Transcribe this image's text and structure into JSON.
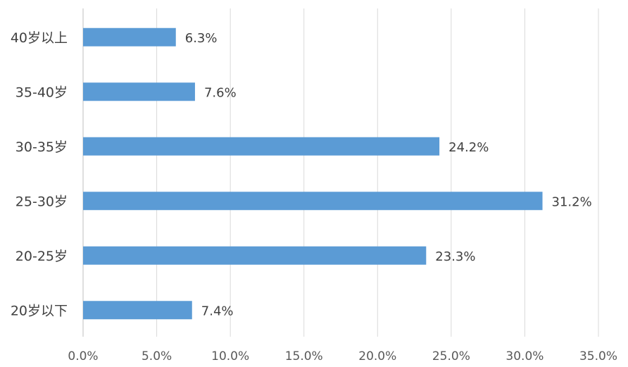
{
  "chart_data": {
    "type": "bar",
    "orientation": "horizontal",
    "categories": [
      "20岁以下",
      "20-25岁",
      "25-30岁",
      "30-35岁",
      "35-40岁",
      "40岁以上"
    ],
    "values": [
      7.4,
      23.3,
      31.2,
      24.2,
      7.6,
      6.3
    ],
    "data_labels": [
      "7.4%",
      "23.3%",
      "31.2%",
      "24.2%",
      "7.6%",
      "6.3%"
    ],
    "x_ticks": [
      "0.0%",
      "5.0%",
      "10.0%",
      "15.0%",
      "20.0%",
      "25.0%",
      "30.0%",
      "35.0%"
    ],
    "xlim": [
      0,
      35
    ],
    "title": "",
    "xlabel": "",
    "ylabel": "",
    "grid": true,
    "legend": "none",
    "colors": {
      "bar": "#5b9bd5"
    }
  }
}
